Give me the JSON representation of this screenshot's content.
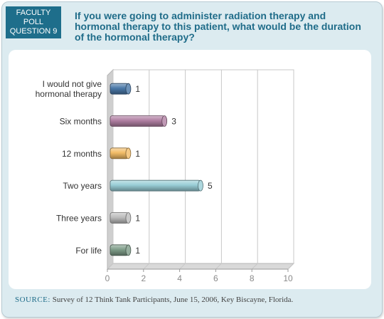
{
  "badge": {
    "lines": [
      "FACULTY",
      "POLL",
      "QUESTION 9"
    ]
  },
  "question": "If you were going to administer radiation therapy and hormonal therapy to this patient, what would be the duration of the hormonal therapy?",
  "source": {
    "label": "SOURCE:",
    "text": "Survey of 12 Think Tank Participants, June 15, 2006, Key Biscayne, Florida."
  },
  "chart_data": {
    "type": "bar",
    "orientation": "horizontal",
    "categories": [
      [
        "I would not give",
        "hormonal therapy"
      ],
      [
        "Six months"
      ],
      [
        "12 months"
      ],
      [
        "Two years"
      ],
      [
        "Three years"
      ],
      [
        "For life"
      ]
    ],
    "values": [
      1,
      3,
      1,
      5,
      1,
      1
    ],
    "bar_colors": [
      "#4a78a8",
      "#b07fa2",
      "#f2bc66",
      "#98cdd6",
      "#bdbdbd",
      "#7e9c88"
    ],
    "xlim": [
      0,
      10
    ],
    "xticks": [
      0,
      2,
      4,
      6,
      8,
      10
    ],
    "grid": true,
    "title": "",
    "xlabel": "",
    "ylabel": ""
  },
  "colors": {
    "accent": "#1f6c89",
    "card_background": "#dcebf0",
    "panel_background": "#ffffff"
  }
}
